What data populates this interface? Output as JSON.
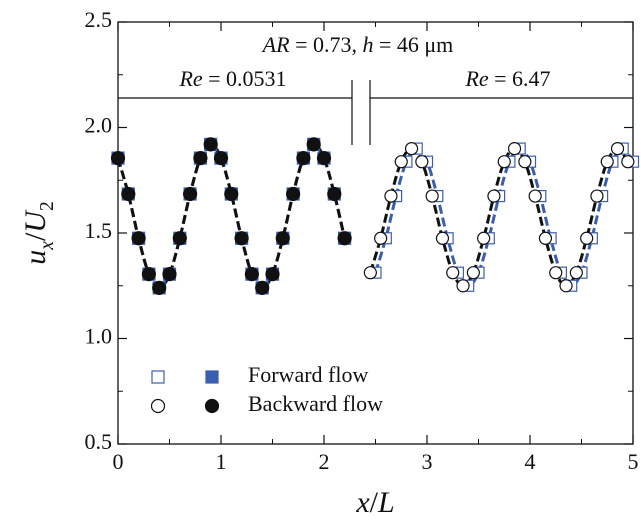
{
  "chart_data": {
    "type": "scatter",
    "xlabel": [
      {
        "text": "x",
        "italic": true
      },
      {
        "text": "/"
      },
      {
        "text": "L",
        "italic": true
      }
    ],
    "ylabel": [
      {
        "text": "u",
        "italic": true
      },
      {
        "text": "x",
        "italic": true,
        "sub": true
      },
      {
        "text": "/"
      },
      {
        "text": "U",
        "italic": true
      },
      {
        "text": "2",
        "sub": true
      }
    ],
    "xlim": [
      0,
      5
    ],
    "ylim": [
      0.5,
      2.5
    ],
    "xticks": [
      0,
      1,
      2,
      3,
      4,
      5
    ],
    "yticks": [
      0.5,
      {
        "value": 1,
        "label": "1.0"
      },
      1.5,
      {
        "value": 2,
        "label": "2.0"
      },
      2.5
    ],
    "xminorticks": [
      0.5,
      1.5,
      2.5,
      3.5,
      4.5
    ],
    "yminorticks": [
      0.75,
      1.25,
      1.75,
      2.25
    ],
    "annotations": [
      {
        "parts": [
          {
            "text": "AR",
            "italic": true
          },
          {
            "text": " = 0.73, "
          },
          {
            "text": "h",
            "italic": true
          },
          {
            "text": " = 46 μm"
          }
        ]
      },
      {
        "parts": [
          {
            "text": "Re",
            "italic": true
          },
          {
            "text": " = 0.0531"
          }
        ]
      },
      {
        "parts": [
          {
            "text": "Re",
            "italic": true
          },
          {
            "text": " = 6.47"
          }
        ]
      }
    ],
    "series": [
      {
        "name": "Forward flow",
        "color": "#3a5fb0",
        "segments": [
          {
            "marker": "square",
            "filled": false,
            "x": [
              2.5,
              2.6,
              2.7,
              2.8,
              2.9,
              3.0,
              3.1,
              3.2,
              3.3,
              3.4,
              3.5,
              3.6,
              3.7,
              3.8,
              3.9,
              4.0,
              4.1,
              4.2,
              4.3,
              4.4,
              4.5,
              4.6,
              4.7,
              4.8,
              4.9,
              5.0
            ],
            "values": [
              1.312,
              1.475,
              1.675,
              1.838,
              1.9,
              1.838,
              1.675,
              1.475,
              1.312,
              1.25,
              1.312,
              1.475,
              1.675,
              1.838,
              1.9,
              1.838,
              1.675,
              1.475,
              1.312,
              1.25,
              1.312,
              1.475,
              1.675,
              1.838,
              1.9,
              1.838
            ]
          },
          {
            "marker": "square",
            "filled": true,
            "x": [
              0,
              0.1,
              0.2,
              0.3,
              0.4,
              0.5,
              0.6,
              0.7,
              0.8,
              0.9,
              1.0,
              1.1,
              1.2,
              1.3,
              1.4,
              1.5,
              1.6,
              1.7,
              1.8,
              1.9,
              2.0,
              2.1,
              2.2
            ],
            "values": [
              1.855,
              1.685,
              1.475,
              1.305,
              1.24,
              1.305,
              1.475,
              1.685,
              1.855,
              1.92,
              1.855,
              1.685,
              1.475,
              1.305,
              1.24,
              1.305,
              1.475,
              1.685,
              1.855,
              1.92,
              1.855,
              1.685,
              1.475
            ]
          }
        ]
      },
      {
        "name": "Backward flow",
        "color": "#111111",
        "segments": [
          {
            "marker": "circle",
            "filled": false,
            "x": [
              2.45,
              2.55,
              2.65,
              2.75,
              2.85,
              2.95,
              3.05,
              3.15,
              3.25,
              3.35,
              3.45,
              3.55,
              3.65,
              3.75,
              3.85,
              3.95,
              4.05,
              4.15,
              4.25,
              4.35,
              4.45,
              4.55,
              4.65,
              4.75,
              4.85,
              4.95
            ],
            "values": [
              1.312,
              1.475,
              1.675,
              1.838,
              1.9,
              1.838,
              1.675,
              1.475,
              1.312,
              1.25,
              1.312,
              1.475,
              1.675,
              1.838,
              1.9,
              1.838,
              1.675,
              1.475,
              1.312,
              1.25,
              1.312,
              1.475,
              1.675,
              1.838,
              1.9,
              1.838
            ]
          },
          {
            "marker": "circle",
            "filled": true,
            "x": [
              0,
              0.1,
              0.2,
              0.3,
              0.4,
              0.5,
              0.6,
              0.7,
              0.8,
              0.9,
              1.0,
              1.1,
              1.2,
              1.3,
              1.4,
              1.5,
              1.6,
              1.7,
              1.8,
              1.9,
              2.0,
              2.1,
              2.2
            ],
            "values": [
              1.855,
              1.685,
              1.475,
              1.305,
              1.24,
              1.305,
              1.475,
              1.685,
              1.855,
              1.92,
              1.855,
              1.685,
              1.475,
              1.305,
              1.24,
              1.305,
              1.475,
              1.685,
              1.855,
              1.92,
              1.855,
              1.685,
              1.475
            ]
          }
        ]
      }
    ]
  }
}
